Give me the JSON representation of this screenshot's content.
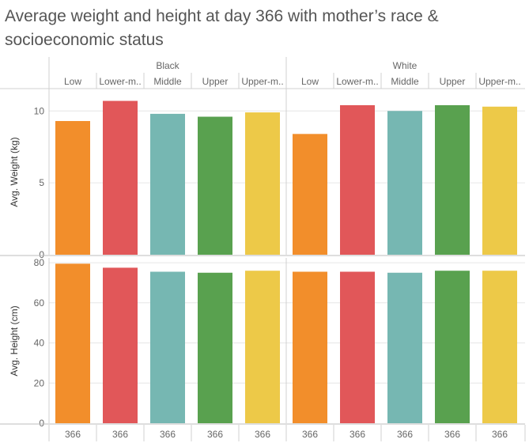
{
  "title": "Average weight and height at day 366 with mother’s race & socioeconomic status",
  "colors": {
    "Low": "#F28E2B",
    "Lower-m..": "#E15759",
    "Middle": "#76B7B2",
    "Upper": "#59A14F",
    "Upper-m..": "#EDC948"
  },
  "chart_data": {
    "type": "bar",
    "title": "Average weight and height at day 366 with mother’s race & socioeconomic status",
    "groups": [
      "Black",
      "White"
    ],
    "categories": [
      "Low",
      "Lower-m..",
      "Middle",
      "Upper",
      "Upper-m.."
    ],
    "x_tick_label": "366",
    "panels": [
      {
        "ylabel": "Avg. Weight (kg)",
        "ylim": [
          0,
          11.5
        ],
        "yticks": [
          0,
          5,
          10
        ],
        "series": [
          {
            "group": "Black",
            "values": [
              9.3,
              10.7,
              9.8,
              9.6,
              9.9
            ]
          },
          {
            "group": "White",
            "values": [
              8.4,
              10.4,
              10.0,
              10.4,
              10.3
            ]
          }
        ]
      },
      {
        "ylabel": "Avg. Height (cm)",
        "ylim": [
          0,
          82
        ],
        "yticks": [
          0,
          20,
          40,
          60,
          80
        ],
        "series": [
          {
            "group": "Black",
            "values": [
              79.5,
              77.5,
              75.5,
              75.0,
              76.0
            ]
          },
          {
            "group": "White",
            "values": [
              75.5,
              75.5,
              75.0,
              76.0,
              76.0
            ]
          }
        ]
      }
    ]
  }
}
